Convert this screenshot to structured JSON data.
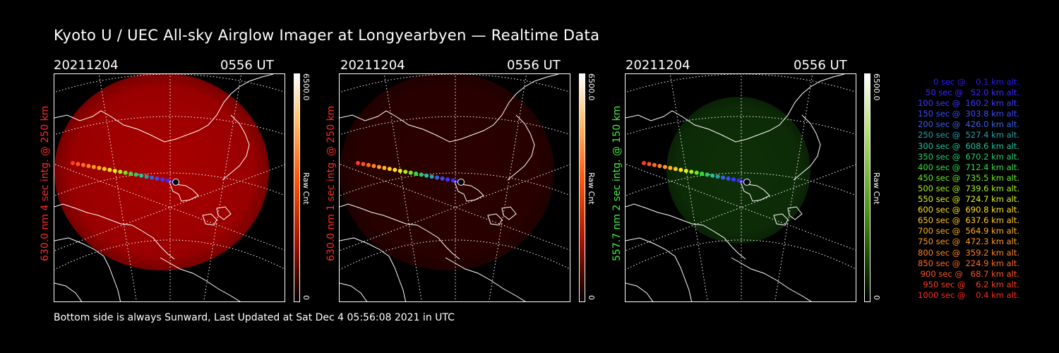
{
  "title": "Kyoto U / UEC All-sky Airglow Imager at Longyearbyen — Realtime Data",
  "footer": "Bottom side is always Sunward, Last Updated at Sat Dec  4 05:56:08 2021 in UTC",
  "colors": {
    "red_channel": "#c80000",
    "green_channel": "#1e6a10",
    "red_label": "#ff2a2a",
    "green_label": "#44ee44"
  },
  "panels": [
    {
      "date": "20211204",
      "time": "0556 UT",
      "side_label": "630.0 nm 4 sec intg. @ 250 km",
      "colorbar": {
        "max": "6500.0",
        "min": "0",
        "unit": "Raw Cnt"
      },
      "brightness": 0.85,
      "channel": "red"
    },
    {
      "date": "20211204",
      "time": "0556 UT",
      "side_label": "630.0 nm 1 sec intg. @ 250 km",
      "colorbar": {
        "max": "6500.0",
        "min": "0",
        "unit": "Raw Cnt"
      },
      "brightness": 0.22,
      "channel": "red"
    },
    {
      "date": "20211204",
      "time": "0556 UT",
      "side_label": "557.7 nm 2 sec intg. @ 150 km",
      "colorbar": {
        "max": "6500.0",
        "min": "0",
        "unit": "Raw Cnt"
      },
      "brightness": 0.45,
      "channel": "green"
    }
  ],
  "legend": [
    {
      "text": "   0 sec @    0.1 km alt.",
      "color": "#2a1aff"
    },
    {
      "text": "  50 sec @   52.0 km alt.",
      "color": "#3a2aff"
    },
    {
      "text": " 100 sec @  160.2 km alt.",
      "color": "#3a3aff"
    },
    {
      "text": " 150 sec @  303.8 km alt.",
      "color": "#3a4aff"
    },
    {
      "text": " 200 sec @  426.0 km alt.",
      "color": "#3a62e0"
    },
    {
      "text": " 250 sec @  527.4 km alt.",
      "color": "#2aa0b0"
    },
    {
      "text": " 300 sec @  608.6 km alt.",
      "color": "#22c0a0"
    },
    {
      "text": " 350 sec @  670.2 km alt.",
      "color": "#22d070"
    },
    {
      "text": " 400 sec @  712.4 km alt.",
      "color": "#33e040"
    },
    {
      "text": " 450 sec @  735.5 km alt.",
      "color": "#66ee22"
    },
    {
      "text": " 500 sec @  739.6 km alt.",
      "color": "#a8f020"
    },
    {
      "text": " 550 sec @  724.7 km alt.",
      "color": "#e0f020"
    },
    {
      "text": " 600 sec @  690.8 km alt.",
      "color": "#ffe020"
    },
    {
      "text": " 650 sec @  637.6 km alt.",
      "color": "#ffc820"
    },
    {
      "text": " 700 sec @  564.9 km alt.",
      "color": "#ffb020"
    },
    {
      "text": " 750 sec @  472.3 km alt.",
      "color": "#ff9a20"
    },
    {
      "text": " 800 sec @  359.2 km alt.",
      "color": "#ff8420"
    },
    {
      "text": " 850 sec @  224.9 km alt.",
      "color": "#ff6c20"
    },
    {
      "text": " 900 sec @   68.7 km alt.",
      "color": "#ff5420"
    },
    {
      "text": " 950 sec @    6.2 km alt.",
      "color": "#ff4020"
    },
    {
      "text": "1000 sec @    0.4 km alt.",
      "color": "#ff2a20"
    }
  ]
}
